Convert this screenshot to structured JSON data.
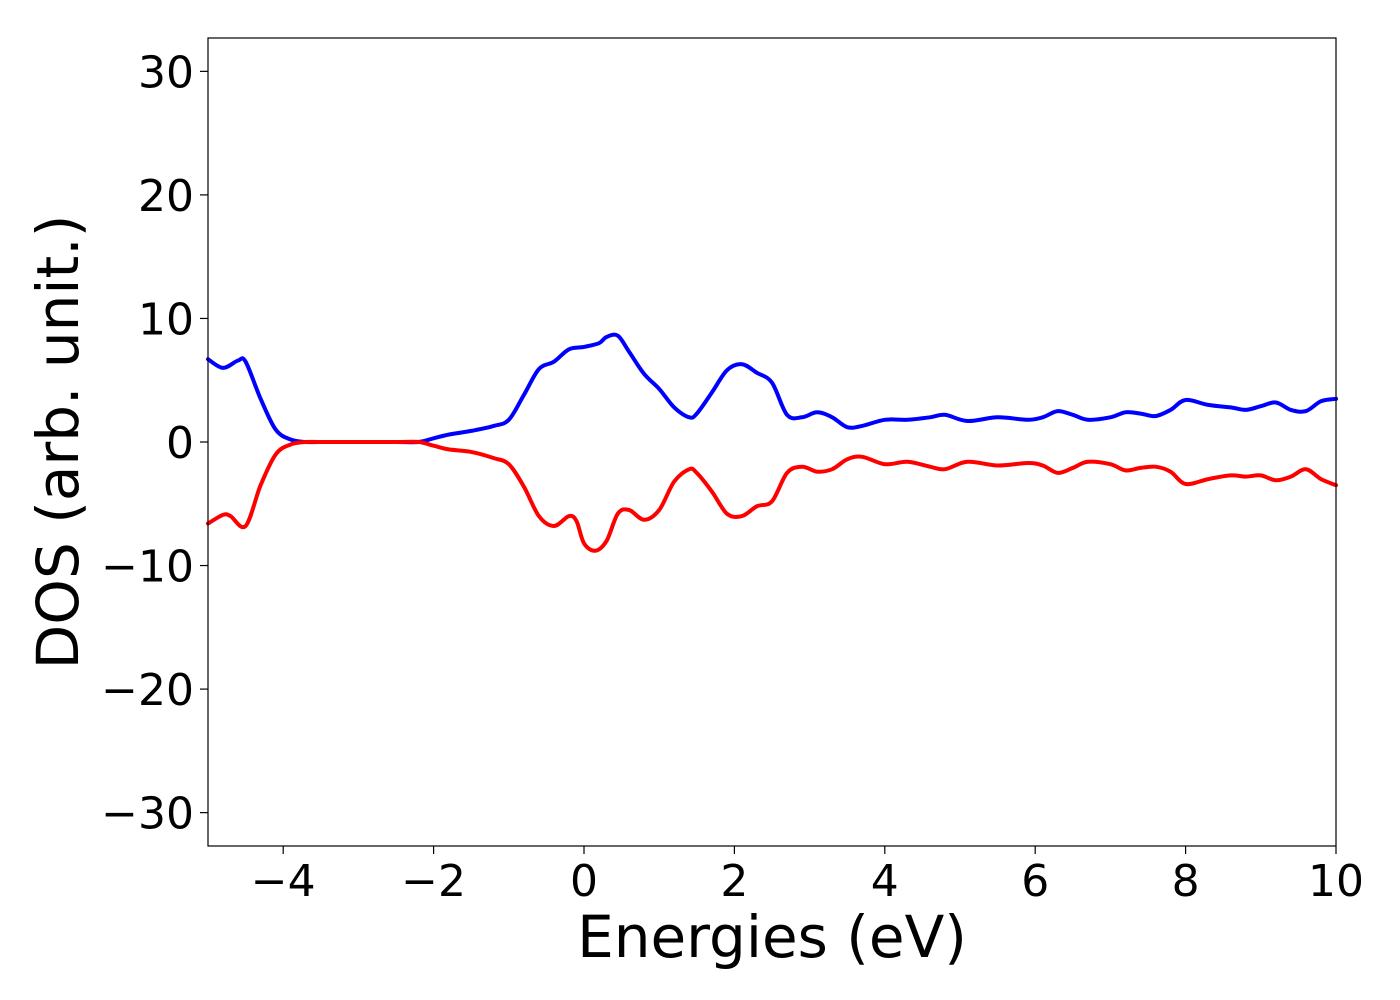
{
  "chart_data": {
    "type": "line",
    "title": "",
    "xlabel": "Energies (eV)",
    "ylabel": "DOS (arb. unit.)",
    "xlim": [
      -5,
      10
    ],
    "ylim": [
      -32.7,
      32.7
    ],
    "grid": false,
    "legend": "none",
    "x_ticks": [
      -4,
      -2,
      0,
      2,
      4,
      6,
      8,
      10
    ],
    "x_tick_labels": [
      "−4",
      "−2",
      "0",
      "2",
      "4",
      "6",
      "8",
      "10"
    ],
    "y_ticks": [
      30,
      20,
      10,
      0,
      -10,
      -20,
      -30
    ],
    "y_tick_labels": [
      "30",
      "20",
      "10",
      "0",
      "−10",
      "−20",
      "−30"
    ],
    "series": [
      {
        "color": "#0000ff",
        "x": [
          -5.0,
          -4.8,
          -4.6,
          -4.5,
          -4.3,
          -4.1,
          -3.9,
          -3.7,
          -3.5,
          -3.0,
          -2.5,
          -2.2,
          -2.0,
          -1.8,
          -1.5,
          -1.2,
          -1.0,
          -0.8,
          -0.6,
          -0.4,
          -0.2,
          0.0,
          0.2,
          0.3,
          0.45,
          0.6,
          0.8,
          1.0,
          1.2,
          1.4,
          1.5,
          1.7,
          1.9,
          2.1,
          2.3,
          2.5,
          2.7,
          2.9,
          3.1,
          3.3,
          3.5,
          3.7,
          4.0,
          4.3,
          4.6,
          4.8,
          5.1,
          5.5,
          5.9,
          6.1,
          6.3,
          6.5,
          6.7,
          7.0,
          7.2,
          7.4,
          7.6,
          7.8,
          8.0,
          8.3,
          8.6,
          8.8,
          9.0,
          9.2,
          9.4,
          9.6,
          9.8,
          10.0
        ],
        "y": [
          6.7,
          6.0,
          6.6,
          6.5,
          3.5,
          1.0,
          0.2,
          0.0,
          0.0,
          0.0,
          0.0,
          0.0,
          0.3,
          0.6,
          0.9,
          1.3,
          1.8,
          3.8,
          5.9,
          6.5,
          7.5,
          7.7,
          8.0,
          8.5,
          8.6,
          7.3,
          5.5,
          4.3,
          2.8,
          2.0,
          2.3,
          4.0,
          5.8,
          6.3,
          5.6,
          4.8,
          2.2,
          2.0,
          2.4,
          2.0,
          1.2,
          1.3,
          1.8,
          1.8,
          2.0,
          2.2,
          1.7,
          2.0,
          1.8,
          2.0,
          2.5,
          2.2,
          1.8,
          2.0,
          2.4,
          2.3,
          2.1,
          2.6,
          3.4,
          3.0,
          2.8,
          2.6,
          2.9,
          3.2,
          2.6,
          2.5,
          3.3,
          3.5
        ]
      },
      {
        "color": "#ff0000",
        "x": [
          -5.0,
          -4.8,
          -4.7,
          -4.5,
          -4.3,
          -4.1,
          -3.9,
          -3.7,
          -3.5,
          -3.0,
          -2.5,
          -2.2,
          -2.0,
          -1.8,
          -1.5,
          -1.2,
          -1.0,
          -0.8,
          -0.6,
          -0.4,
          -0.2,
          -0.1,
          0.0,
          0.15,
          0.3,
          0.45,
          0.6,
          0.8,
          1.0,
          1.2,
          1.4,
          1.5,
          1.7,
          1.9,
          2.1,
          2.3,
          2.5,
          2.7,
          2.9,
          3.1,
          3.3,
          3.5,
          3.7,
          4.0,
          4.3,
          4.6,
          4.8,
          5.1,
          5.5,
          5.9,
          6.1,
          6.3,
          6.5,
          6.7,
          7.0,
          7.2,
          7.4,
          7.6,
          7.8,
          8.0,
          8.3,
          8.6,
          8.8,
          9.0,
          9.2,
          9.4,
          9.6,
          9.8,
          10.0
        ],
        "y": [
          -6.6,
          -5.9,
          -6.0,
          -6.8,
          -3.5,
          -1.0,
          -0.2,
          0.0,
          0.0,
          0.0,
          0.0,
          0.0,
          -0.3,
          -0.6,
          -0.8,
          -1.3,
          -1.8,
          -3.6,
          -6.0,
          -6.8,
          -6.0,
          -6.4,
          -8.2,
          -8.8,
          -8.0,
          -5.8,
          -5.5,
          -6.3,
          -5.5,
          -3.2,
          -2.2,
          -2.5,
          -4.0,
          -5.8,
          -6.0,
          -5.2,
          -4.8,
          -2.5,
          -2.0,
          -2.4,
          -2.2,
          -1.4,
          -1.2,
          -1.8,
          -1.6,
          -2.0,
          -2.2,
          -1.6,
          -1.9,
          -1.7,
          -1.9,
          -2.5,
          -2.1,
          -1.6,
          -1.8,
          -2.3,
          -2.1,
          -2.0,
          -2.4,
          -3.4,
          -3.0,
          -2.7,
          -2.8,
          -2.7,
          -3.1,
          -2.8,
          -2.2,
          -3.0,
          -3.5
        ]
      }
    ]
  }
}
